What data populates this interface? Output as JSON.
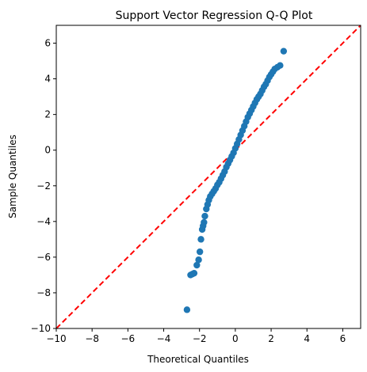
{
  "chart_data": {
    "type": "scatter",
    "title": "Support Vector Regression Q-Q Plot",
    "xlabel": "Theoretical Quantiles",
    "ylabel": "Sample Quantiles",
    "xlim": [
      -10,
      7
    ],
    "ylim": [
      -10,
      7
    ],
    "x_ticks": [
      "−10",
      "−8",
      "−6",
      "−4",
      "−2",
      "0",
      "2",
      "4",
      "6"
    ],
    "y_ticks": [
      "−10",
      "−8",
      "−6",
      "−4",
      "−2",
      "0",
      "2",
      "4",
      "6"
    ],
    "grid": false,
    "point_color": "#1f77b4",
    "reference_line": {
      "style": "dashed",
      "color": "#ff0000",
      "points": [
        [
          -10,
          -10
        ],
        [
          7,
          7
        ]
      ]
    },
    "series": [
      {
        "values": [
          [
            -2.7,
            -8.95
          ],
          [
            -2.5,
            -7.0
          ],
          [
            -2.4,
            -6.95
          ],
          [
            -2.3,
            -6.9
          ],
          [
            -2.15,
            -6.45
          ],
          [
            -2.05,
            -6.15
          ],
          [
            -1.98,
            -5.7
          ],
          [
            -1.92,
            -5.0
          ],
          [
            -1.85,
            -4.45
          ],
          [
            -1.8,
            -4.25
          ],
          [
            -1.75,
            -4.05
          ],
          [
            -1.7,
            -3.7
          ],
          [
            -1.62,
            -3.3
          ],
          [
            -1.55,
            -3.05
          ],
          [
            -1.48,
            -2.8
          ],
          [
            -1.4,
            -2.6
          ],
          [
            -1.3,
            -2.45
          ],
          [
            -1.2,
            -2.3
          ],
          [
            -1.1,
            -2.15
          ],
          [
            -1.0,
            -1.95
          ],
          [
            -0.9,
            -1.8
          ],
          [
            -0.8,
            -1.6
          ],
          [
            -0.7,
            -1.4
          ],
          [
            -0.6,
            -1.2
          ],
          [
            -0.5,
            -0.95
          ],
          [
            -0.4,
            -0.75
          ],
          [
            -0.3,
            -0.55
          ],
          [
            -0.2,
            -0.35
          ],
          [
            -0.1,
            -0.15
          ],
          [
            0.0,
            0.1
          ],
          [
            0.1,
            0.35
          ],
          [
            0.2,
            0.6
          ],
          [
            0.3,
            0.85
          ],
          [
            0.4,
            1.1
          ],
          [
            0.5,
            1.35
          ],
          [
            0.6,
            1.6
          ],
          [
            0.7,
            1.85
          ],
          [
            0.8,
            2.05
          ],
          [
            0.9,
            2.25
          ],
          [
            1.0,
            2.45
          ],
          [
            1.1,
            2.65
          ],
          [
            1.2,
            2.85
          ],
          [
            1.3,
            3.0
          ],
          [
            1.4,
            3.15
          ],
          [
            1.5,
            3.35
          ],
          [
            1.6,
            3.55
          ],
          [
            1.7,
            3.7
          ],
          [
            1.8,
            3.9
          ],
          [
            1.9,
            4.1
          ],
          [
            2.0,
            4.25
          ],
          [
            2.1,
            4.4
          ],
          [
            2.2,
            4.55
          ],
          [
            2.35,
            4.65
          ],
          [
            2.5,
            4.75
          ],
          [
            2.7,
            5.55
          ]
        ]
      }
    ]
  }
}
